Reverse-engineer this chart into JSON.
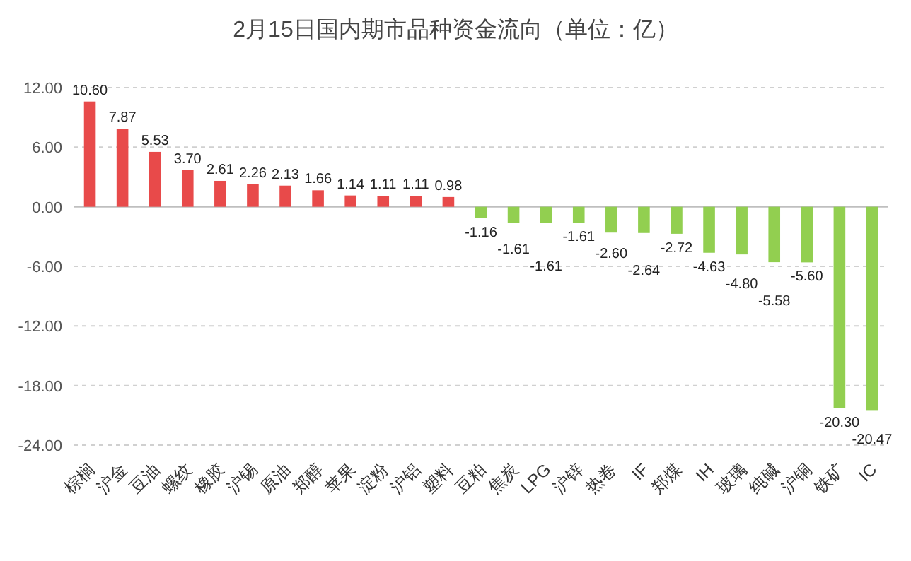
{
  "chart_data": {
    "type": "bar",
    "title": "2月15日国内期市品种资金流向（单位：亿）",
    "categories": [
      "棕榈",
      "沪金",
      "豆油",
      "螺纹",
      "橡胶",
      "沪锡",
      "原油",
      "郑醇",
      "苹果",
      "淀粉",
      "沪铝",
      "塑料",
      "豆粕",
      "焦炭",
      "LPG",
      "沪锌",
      "热卷",
      "IF",
      "郑煤",
      "IH",
      "玻璃",
      "纯碱",
      "沪铜",
      "铁矿",
      "IC"
    ],
    "values": [
      10.6,
      7.87,
      5.53,
      3.7,
      2.61,
      2.26,
      2.13,
      1.66,
      1.14,
      1.11,
      1.11,
      0.98,
      -1.16,
      -1.61,
      -1.61,
      -1.61,
      -2.6,
      -2.64,
      -2.72,
      -4.63,
      -4.8,
      -5.58,
      -5.6,
      -20.3,
      -20.47
    ],
    "value_labels": [
      "10.60",
      "7.87",
      "5.53",
      "3.70",
      "2.61",
      "2.26",
      "2.13",
      "1.66",
      "1.14",
      "1.11",
      "1.11",
      "0.98",
      "-1.16",
      "-1.61",
      "-1.61",
      "-1.61",
      "-2.60",
      "-2.64",
      "-2.72",
      "-4.63",
      "-4.80",
      "-5.58",
      "-5.60",
      "-20.30",
      "-20.47"
    ],
    "colors": [
      "#e84a4a",
      "#e84a4a",
      "#e84a4a",
      "#e84a4a",
      "#e84a4a",
      "#e84a4a",
      "#e84a4a",
      "#e84a4a",
      "#e84a4a",
      "#e84a4a",
      "#e84a4a",
      "#e84a4a",
      "#92cf50",
      "#92cf50",
      "#92cf50",
      "#92cf50",
      "#92cf50",
      "#92cf50",
      "#92cf50",
      "#92cf50",
      "#92cf50",
      "#92cf50",
      "#92cf50",
      "#92cf50",
      "#92cf50"
    ],
    "ylim": [
      -24,
      12
    ],
    "yticks": [
      {
        "value": -24,
        "label": "-24.00"
      },
      {
        "value": -18,
        "label": "-18.00"
      },
      {
        "value": -12,
        "label": "-12.00"
      },
      {
        "value": -6,
        "label": "-6.00"
      },
      {
        "value": 0,
        "label": "0.00"
      },
      {
        "value": 6,
        "label": "6.00"
      },
      {
        "value": 12,
        "label": "12.00"
      }
    ],
    "grid": "y"
  }
}
